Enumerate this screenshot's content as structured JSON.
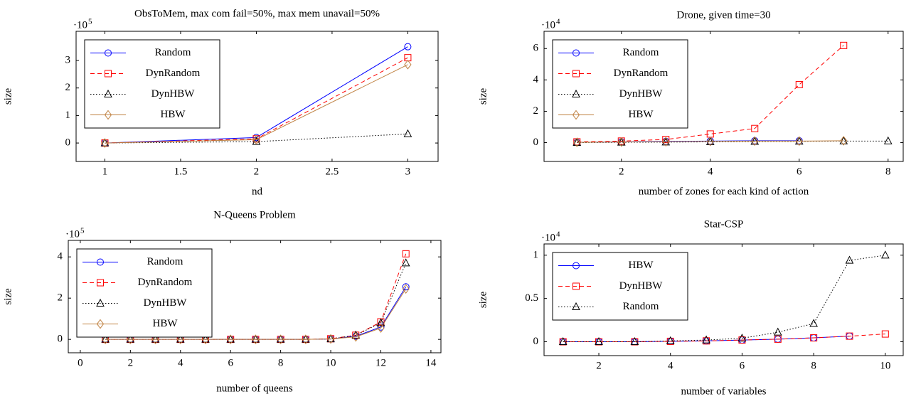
{
  "chart_data": [
    {
      "type": "line",
      "title": "ObsToMem, max com fail=50%, max mem unavail=50%",
      "x_label": "nd",
      "y_label": "size",
      "y_scale": {
        "base": "·10",
        "exponent": "5"
      },
      "xlim": [
        0.81,
        3.2
      ],
      "xticks": [
        1,
        1.5,
        2,
        2.5,
        3
      ],
      "ylim": [
        -0.67,
        4.06
      ],
      "yticks": [
        0,
        1,
        2,
        3
      ],
      "legend": "upper left",
      "series": [
        {
          "name": "Random",
          "color": "#0000ff",
          "dash": "solid",
          "marker": "circle",
          "x": [
            1,
            2,
            3
          ],
          "values": [
            0,
            0.2,
            3.5
          ]
        },
        {
          "name": "DynRandom",
          "color": "#ff0000",
          "dash": "dashed",
          "marker": "square",
          "x": [
            1,
            2,
            3
          ],
          "values": [
            0,
            0.15,
            3.1
          ]
        },
        {
          "name": "DynHBW",
          "color": "#000000",
          "dash": "dotted",
          "marker": "triangle",
          "x": [
            1,
            2,
            3
          ],
          "values": [
            0,
            0.05,
            0.33
          ]
        },
        {
          "name": "HBW",
          "color": "#bf8040",
          "dash": "solid",
          "marker": "diamond",
          "x": [
            1,
            2,
            3
          ],
          "values": [
            0,
            0.12,
            2.85
          ]
        }
      ]
    },
    {
      "type": "line",
      "title": "Drone, given time=30",
      "x_label": "number of zones for each kind of action",
      "y_label": "size",
      "y_scale": {
        "base": "·10",
        "exponent": "4"
      },
      "xlim": [
        0.26,
        8.34
      ],
      "xticks": [
        2,
        4,
        6,
        8
      ],
      "ylim": [
        -1.2,
        7.1
      ],
      "yticks": [
        0,
        2,
        4,
        6
      ],
      "legend": "upper left",
      "series": [
        {
          "name": "Random",
          "color": "#0000ff",
          "dash": "solid",
          "marker": "circle",
          "x": [
            1,
            2,
            3,
            4,
            5,
            6
          ],
          "values": [
            0.02,
            0.05,
            0.08,
            0.1,
            0.12,
            0.12
          ]
        },
        {
          "name": "DynRandom",
          "color": "#ff0000",
          "dash": "dashed",
          "marker": "square",
          "x": [
            1,
            2,
            3,
            4,
            5,
            6,
            7
          ],
          "values": [
            0.05,
            0.1,
            0.2,
            0.55,
            0.9,
            3.7,
            6.2
          ]
        },
        {
          "name": "DynHBW",
          "color": "#000000",
          "dash": "dotted",
          "marker": "triangle",
          "x": [
            1,
            2,
            3,
            4,
            5,
            6,
            7,
            8
          ],
          "values": [
            0,
            0.02,
            0.03,
            0.05,
            0.07,
            0.08,
            0.1,
            0.1
          ]
        },
        {
          "name": "HBW",
          "color": "#bf8040",
          "dash": "solid",
          "marker": "diamond",
          "x": [
            1,
            2,
            3,
            4,
            5,
            6,
            7
          ],
          "values": [
            0.02,
            0.04,
            0.06,
            0.08,
            0.1,
            0.1,
            0.12
          ]
        }
      ]
    },
    {
      "type": "line",
      "title": "N-Queens Problem",
      "x_label": "number of queens",
      "y_label": "size",
      "y_scale": {
        "base": "·10",
        "exponent": "5"
      },
      "xlim": [
        -0.48,
        14.4
      ],
      "xticks": [
        0,
        2,
        4,
        6,
        8,
        10,
        12,
        14
      ],
      "ylim": [
        -0.65,
        4.8
      ],
      "yticks": [
        0,
        2,
        4
      ],
      "legend": "upper left",
      "series": [
        {
          "name": "Random",
          "color": "#0000ff",
          "dash": "solid",
          "marker": "circle",
          "x": [
            1,
            2,
            3,
            4,
            5,
            6,
            7,
            8,
            9,
            10,
            11,
            12,
            13
          ],
          "values": [
            0,
            0,
            0,
            0,
            0,
            0,
            0,
            0,
            0,
            0.02,
            0.15,
            0.6,
            2.55
          ]
        },
        {
          "name": "DynRandom",
          "color": "#ff0000",
          "dash": "dashed",
          "marker": "square",
          "x": [
            1,
            2,
            3,
            4,
            5,
            6,
            7,
            8,
            9,
            10,
            11,
            12,
            13
          ],
          "values": [
            0,
            0,
            0,
            0,
            0,
            0,
            0,
            0,
            0,
            0.03,
            0.2,
            0.85,
            4.15
          ]
        },
        {
          "name": "DynHBW",
          "color": "#000000",
          "dash": "dotted",
          "marker": "triangle",
          "x": [
            1,
            2,
            3,
            4,
            5,
            6,
            7,
            8,
            9,
            10,
            11,
            12,
            13
          ],
          "values": [
            0,
            0,
            0,
            0,
            0,
            0,
            0,
            0,
            0,
            0.02,
            0.2,
            0.8,
            3.7
          ]
        },
        {
          "name": "HBW",
          "color": "#bf8040",
          "dash": "solid",
          "marker": "diamond",
          "x": [
            1,
            2,
            3,
            4,
            5,
            6,
            7,
            8,
            9,
            10,
            11,
            12,
            13
          ],
          "values": [
            0,
            0,
            0,
            0,
            0,
            0,
            0,
            0,
            0,
            0.02,
            0.12,
            0.55,
            2.45
          ]
        }
      ]
    },
    {
      "type": "line",
      "title": "Star-CSP",
      "x_label": "number of variables",
      "y_label": "size",
      "y_scale": {
        "base": "·10",
        "exponent": "4"
      },
      "xlim": [
        0.47,
        10.5
      ],
      "xticks": [
        2,
        4,
        6,
        8,
        10
      ],
      "ylim": [
        -0.16,
        1.13
      ],
      "yticks": [
        0,
        0.5,
        1
      ],
      "legend": "upper left",
      "series": [
        {
          "name": "HBW",
          "color": "#0000ff",
          "dash": "solid",
          "marker": "circle",
          "x": [
            1,
            2,
            3,
            4,
            5,
            6,
            7,
            8,
            9
          ],
          "values": [
            0,
            0,
            0,
            0.005,
            0.01,
            0.02,
            0.03,
            0.045,
            0.065
          ]
        },
        {
          "name": "DynHBW",
          "color": "#ff0000",
          "dash": "dashed",
          "marker": "square",
          "x": [
            1,
            2,
            3,
            4,
            5,
            6,
            7,
            8,
            9,
            10
          ],
          "values": [
            0,
            0,
            0,
            0.005,
            0.01,
            0.02,
            0.03,
            0.045,
            0.065,
            0.09
          ]
        },
        {
          "name": "Random",
          "color": "#000000",
          "dash": "dotted",
          "marker": "triangle",
          "x": [
            1,
            2,
            3,
            4,
            5,
            6,
            7,
            8,
            9,
            10
          ],
          "values": [
            0,
            0,
            0,
            0.01,
            0.02,
            0.04,
            0.11,
            0.21,
            0.94,
            1.0
          ]
        }
      ]
    }
  ]
}
